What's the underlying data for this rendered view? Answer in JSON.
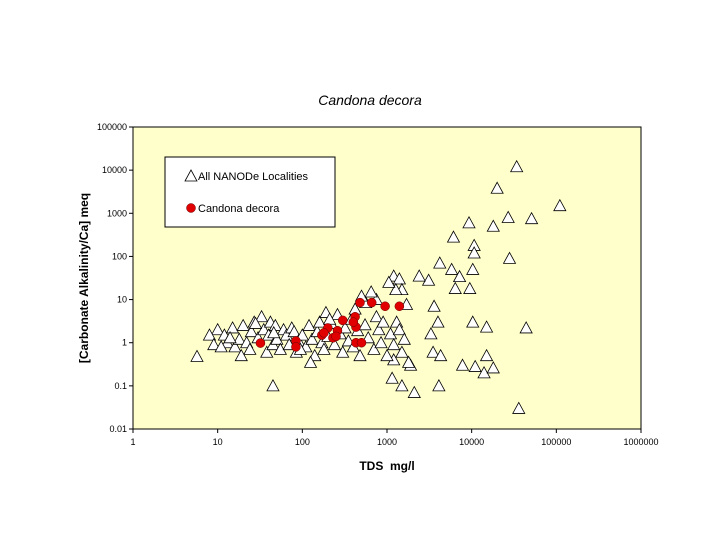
{
  "chart_data": {
    "type": "scatter",
    "title": "Candona decora",
    "x_label": "TDS  mg/l",
    "y_label": "[Carbonate Alkalinity/Ca] meq",
    "log_x": true,
    "log_y": true,
    "xlim": [
      1,
      1000000
    ],
    "ylim": [
      0.01,
      100000
    ],
    "xticks": [
      1,
      10,
      100,
      1000,
      10000,
      100000,
      1000000
    ],
    "yticks": [
      0.01,
      0.1,
      1,
      10,
      100,
      1000,
      10000,
      100000
    ],
    "plot_background": "#ffffcc",
    "legend": "upper left",
    "series": [
      {
        "name": "All NANODe Localities",
        "marker": "triangle",
        "color": "#000000",
        "x": [
          5.7,
          45,
          34000,
          20000,
          110000,
          51000,
          27000,
          18000,
          9300,
          6100,
          10700,
          10700,
          28000,
          4200,
          5800,
          10300,
          6400,
          9500,
          3600,
          4000,
          10300,
          15000,
          44000,
          3300,
          3500,
          4100,
          4300,
          7800,
          11000,
          15000,
          14000,
          18000,
          36000,
          2100,
          1500,
          1150,
          1900,
          1200,
          1200,
          1400,
          1500,
          1700,
          750,
          560,
          3100,
          2400,
          7200,
          1270,
          10,
          12,
          13,
          15,
          16,
          18,
          20,
          22,
          24,
          25,
          27,
          30,
          33,
          35,
          38,
          40,
          42,
          45,
          48,
          50,
          55,
          60,
          65,
          70,
          75,
          80,
          85,
          90,
          100,
          110,
          120,
          130,
          140,
          150,
          160,
          170,
          180,
          190,
          200,
          220,
          240,
          260,
          280,
          300,
          320,
          350,
          380,
          400,
          420,
          450,
          480,
          500,
          550,
          600,
          650,
          700,
          750,
          800,
          850,
          900,
          1000,
          1050,
          1100,
          1200,
          1300,
          1400,
          1500,
          1600,
          1800,
          8,
          9,
          11,
          14,
          19,
          28,
          46,
          95,
          125,
          210
        ],
        "values": [
          0.48,
          0.1,
          12000,
          3800,
          1500,
          750,
          800,
          500,
          600,
          280,
          180,
          120,
          90,
          70,
          50,
          50,
          18,
          18,
          7,
          3,
          3,
          2.3,
          2.2,
          1.6,
          0.6,
          0.1,
          0.5,
          0.3,
          0.28,
          0.5,
          0.2,
          0.26,
          0.03,
          0.07,
          0.1,
          0.15,
          0.3,
          0.4,
          35,
          30,
          17,
          7.7,
          10,
          8.5,
          28,
          35,
          34,
          17,
          2,
          1.5,
          1,
          2.2,
          0.8,
          1.2,
          2.5,
          1,
          0.7,
          1.8,
          3,
          1.3,
          4,
          2,
          0.6,
          1.5,
          3,
          0.9,
          2.5,
          1.2,
          0.7,
          2,
          1.5,
          0.9,
          2.2,
          1.8,
          0.6,
          1.1,
          1.5,
          0.8,
          2.5,
          1.2,
          0.5,
          1.8,
          3,
          1,
          0.7,
          5,
          1.4,
          2.8,
          0.9,
          4.5,
          1.6,
          0.6,
          2.2,
          1.1,
          3.5,
          0.8,
          6,
          1.9,
          0.5,
          12,
          2.6,
          1.3,
          15,
          0.7,
          4,
          2,
          1,
          3,
          0.5,
          25,
          1.6,
          0.9,
          3,
          2,
          0.6,
          1.2,
          0.35,
          1.5,
          0.9,
          0.8,
          1.3,
          0.5,
          2.8,
          1.7,
          0.7,
          0.35,
          3.5
        ]
      },
      {
        "name": "Candona decora",
        "marker": "circle",
        "color": "#e00000",
        "x": [
          32,
          84,
          84,
          200,
          230,
          260,
          300,
          420,
          480,
          660,
          950,
          1400,
          430,
          400,
          430,
          500,
          250,
          170,
          180
        ],
        "values": [
          0.98,
          1.1,
          0.8,
          2.2,
          1.3,
          1.9,
          3.3,
          4,
          8.5,
          8.5,
          7,
          7,
          2.3,
          3,
          1,
          1,
          1.4,
          1.5,
          1.7
        ]
      }
    ]
  }
}
